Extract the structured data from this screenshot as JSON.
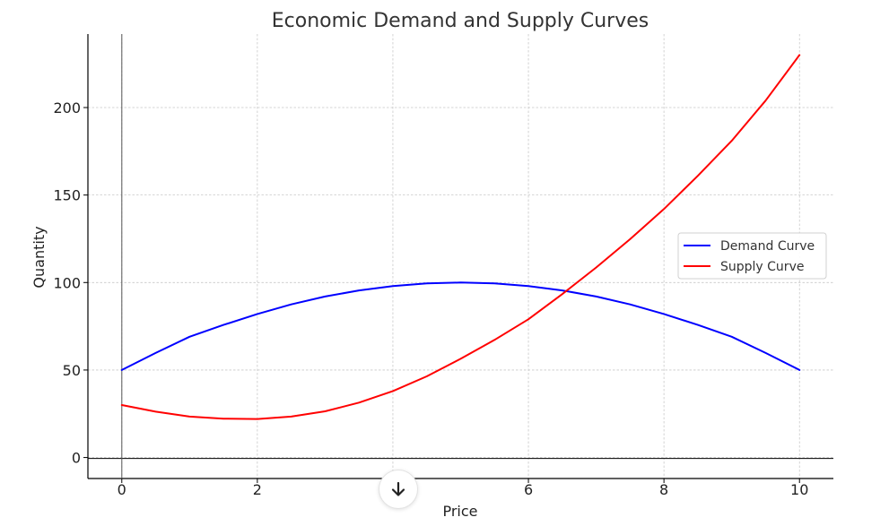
{
  "chart_data": {
    "type": "line",
    "title": "Economic Demand and Supply Curves",
    "xlabel": "Price",
    "ylabel": "Quantity",
    "xlim": [
      -0.5,
      10.5
    ],
    "ylim": [
      -12,
      242
    ],
    "xticks": [
      0,
      2,
      4,
      6,
      8,
      10
    ],
    "xtick_labels": [
      "0",
      "2",
      "",
      "6",
      "8",
      "10"
    ],
    "yticks": [
      0,
      50,
      100,
      150,
      200
    ],
    "grid": true,
    "legend": "center-right",
    "series": [
      {
        "name": "Demand Curve",
        "color": "#0000ff",
        "x": [
          0,
          0.5,
          1,
          1.5,
          2,
          2.5,
          3,
          3.5,
          4,
          4.5,
          5,
          5.5,
          6,
          6.5,
          7,
          7.5,
          8,
          8.5,
          9,
          9.5,
          10
        ],
        "y": [
          50,
          59.75,
          69,
          75.75,
          82,
          87.5,
          92,
          95.5,
          98,
          99.5,
          100,
          99.5,
          98,
          95.5,
          92,
          87.5,
          82,
          75.75,
          69,
          59.75,
          50
        ]
      },
      {
        "name": "Supply Curve",
        "color": "#ff0000",
        "x": [
          0,
          0.5,
          1,
          1.5,
          2,
          2.5,
          3,
          3.5,
          4,
          4.5,
          5,
          5.5,
          6,
          6.5,
          7,
          7.5,
          8,
          8.5,
          9,
          9.5,
          10
        ],
        "y": [
          30,
          26.2,
          23.4,
          22.2,
          22,
          23.4,
          26.4,
          31.4,
          38,
          46.4,
          56.4,
          67.2,
          79,
          93.4,
          108.6,
          124.8,
          142,
          161,
          181,
          204,
          230
        ]
      }
    ]
  },
  "ui": {
    "scroll_icon": "arrow-down-icon"
  }
}
